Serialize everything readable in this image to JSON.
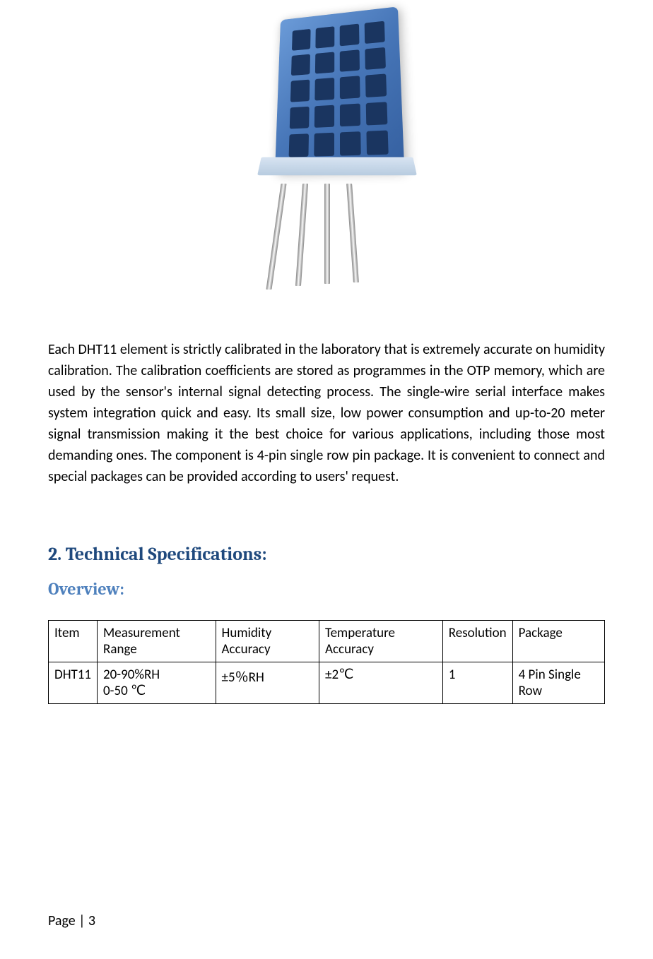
{
  "image": {
    "alt": "DHT11 Sensor — blue humidity/temperature sensor module with 4 pins"
  },
  "paragraph": "Each DHT11 element is strictly calibrated in the laboratory that is extremely accurate on humidity calibration. The calibration coefficients are stored as programmes in the OTP memory, which are used by the sensor's internal signal detecting process. The single-wire serial interface makes system integration quick and easy. Its small size, low power consumption and up-to-20 meter signal transmission making it the best choice for various applications, including those most demanding ones. The component is 4-pin single row pin package. It is convenient to connect and special packages can be provided according to users' request.",
  "section": {
    "number": "2.",
    "title": "Technical Specifications:"
  },
  "subsection": "Overview:",
  "table": {
    "headers": {
      "c0": "Item",
      "c1": "Measurement Range",
      "c2": "Humidity Accuracy",
      "c3": "Temperature Accuracy",
      "c4": "Resolution",
      "c5": "Package"
    },
    "row": {
      "c0": "DHT11",
      "c1_line1": "20-90%RH",
      "c1_line2": "0-50 ℃",
      "c2": "±5％RH",
      "c3": "±2℃",
      "c4": "1",
      "c5": "4 Pin Single Row"
    }
  },
  "footer": "Page | 3",
  "colors": {
    "heading": "#1f497d",
    "subheading": "#4f81bd",
    "text": "#000000",
    "border": "#000000",
    "background": "#ffffff"
  }
}
